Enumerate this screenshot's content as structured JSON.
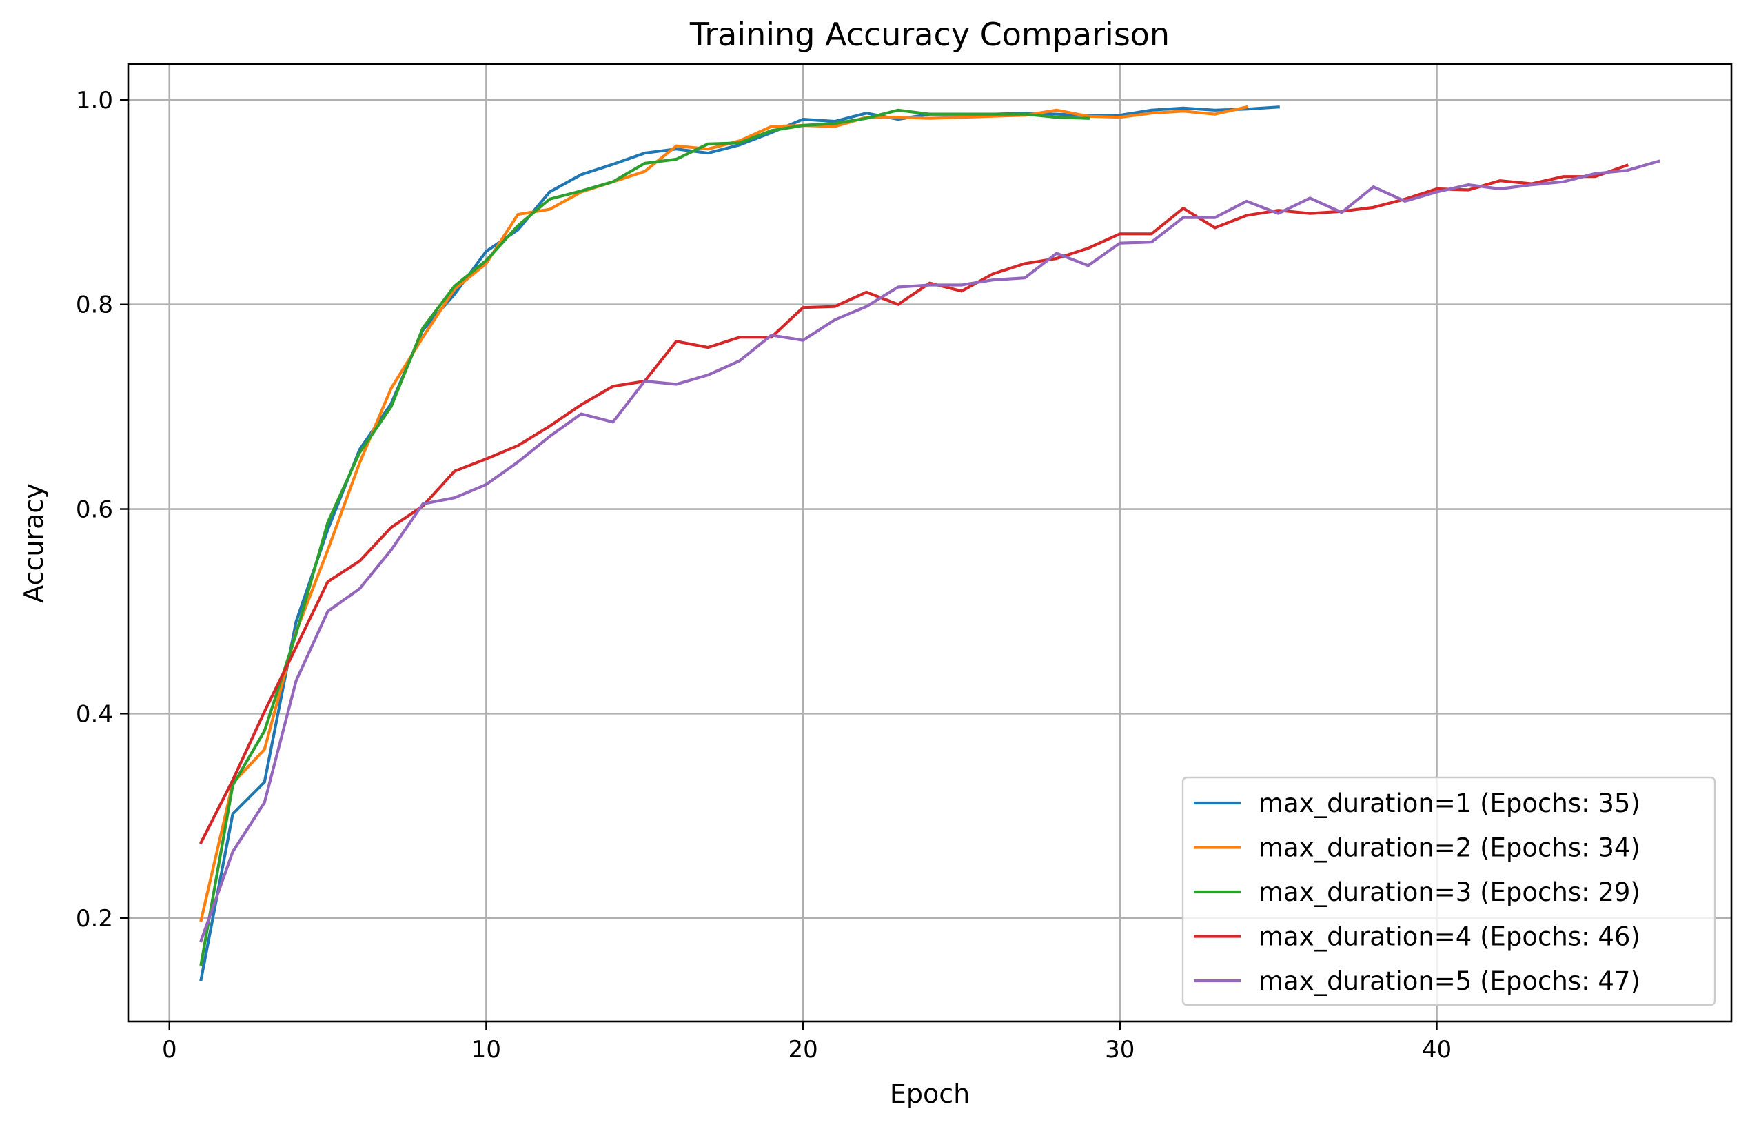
{
  "chart_data": {
    "type": "line",
    "title": "Training Accuracy Comparison",
    "xlabel": "Epoch",
    "ylabel": "Accuracy",
    "xlim": [
      -1.3,
      49.3
    ],
    "ylim": [
      0.099,
      1.035
    ],
    "xticks": [
      0,
      10,
      20,
      30,
      40
    ],
    "yticks": [
      0.2,
      0.4,
      0.6,
      0.8,
      1.0
    ],
    "xtick_labels": [
      "0",
      "10",
      "20",
      "30",
      "40"
    ],
    "ytick_labels": [
      "0.2",
      "0.4",
      "0.6",
      "0.8",
      "1.0"
    ],
    "grid": true,
    "legend_position": "lower right",
    "series": [
      {
        "name": "max_duration=1 (Epochs: 35)",
        "color": "#1f77b4",
        "x_start": 1,
        "values": [
          0.14,
          0.302,
          0.333,
          0.49,
          0.58,
          0.658,
          0.703,
          0.775,
          0.81,
          0.852,
          0.873,
          0.91,
          0.927,
          0.937,
          0.948,
          0.952,
          0.948,
          0.956,
          0.968,
          0.981,
          0.979,
          0.987,
          0.981,
          0.986,
          0.986,
          0.986,
          0.987,
          0.986,
          0.985,
          0.985,
          0.99,
          0.992,
          0.99,
          0.991,
          0.993
        ]
      },
      {
        "name": "max_duration=2 (Epochs: 34)",
        "color": "#ff7f0e",
        "x_start": 1,
        "values": [
          0.198,
          0.332,
          0.365,
          0.48,
          0.56,
          0.645,
          0.718,
          0.768,
          0.815,
          0.84,
          0.888,
          0.893,
          0.91,
          0.92,
          0.93,
          0.955,
          0.952,
          0.96,
          0.974,
          0.975,
          0.974,
          0.983,
          0.983,
          0.982,
          0.983,
          0.984,
          0.985,
          0.99,
          0.984,
          0.983,
          0.987,
          0.989,
          0.986,
          0.993
        ]
      },
      {
        "name": "max_duration=3 (Epochs: 29)",
        "color": "#2ca02c",
        "x_start": 1,
        "values": [
          0.155,
          0.33,
          0.383,
          0.478,
          0.587,
          0.655,
          0.7,
          0.777,
          0.818,
          0.843,
          0.877,
          0.903,
          0.911,
          0.92,
          0.938,
          0.942,
          0.957,
          0.958,
          0.97,
          0.975,
          0.977,
          0.982,
          0.99,
          0.986,
          0.986,
          0.986,
          0.986,
          0.983,
          0.982
        ]
      },
      {
        "name": "max_duration=4 (Epochs: 46)",
        "color": "#d62728",
        "x_start": 1,
        "values": [
          0.274,
          0.335,
          0.402,
          0.465,
          0.529,
          0.549,
          0.582,
          0.603,
          0.637,
          0.649,
          0.662,
          0.681,
          0.702,
          0.72,
          0.725,
          0.764,
          0.758,
          0.768,
          0.768,
          0.797,
          0.798,
          0.812,
          0.8,
          0.821,
          0.813,
          0.83,
          0.84,
          0.845,
          0.855,
          0.869,
          0.869,
          0.894,
          0.875,
          0.887,
          0.892,
          0.889,
          0.891,
          0.895,
          0.903,
          0.913,
          0.912,
          0.921,
          0.918,
          0.925,
          0.925,
          0.936
        ]
      },
      {
        "name": "max_duration=5 (Epochs: 47)",
        "color": "#9467bd",
        "x_start": 1,
        "values": [
          0.178,
          0.265,
          0.313,
          0.432,
          0.5,
          0.522,
          0.56,
          0.605,
          0.611,
          0.624,
          0.646,
          0.671,
          0.693,
          0.685,
          0.725,
          0.722,
          0.731,
          0.745,
          0.77,
          0.765,
          0.785,
          0.798,
          0.817,
          0.819,
          0.819,
          0.824,
          0.826,
          0.85,
          0.838,
          0.86,
          0.861,
          0.885,
          0.885,
          0.901,
          0.889,
          0.904,
          0.89,
          0.915,
          0.901,
          0.91,
          0.917,
          0.913,
          0.917,
          0.92,
          0.928,
          0.931,
          0.94
        ]
      }
    ]
  }
}
